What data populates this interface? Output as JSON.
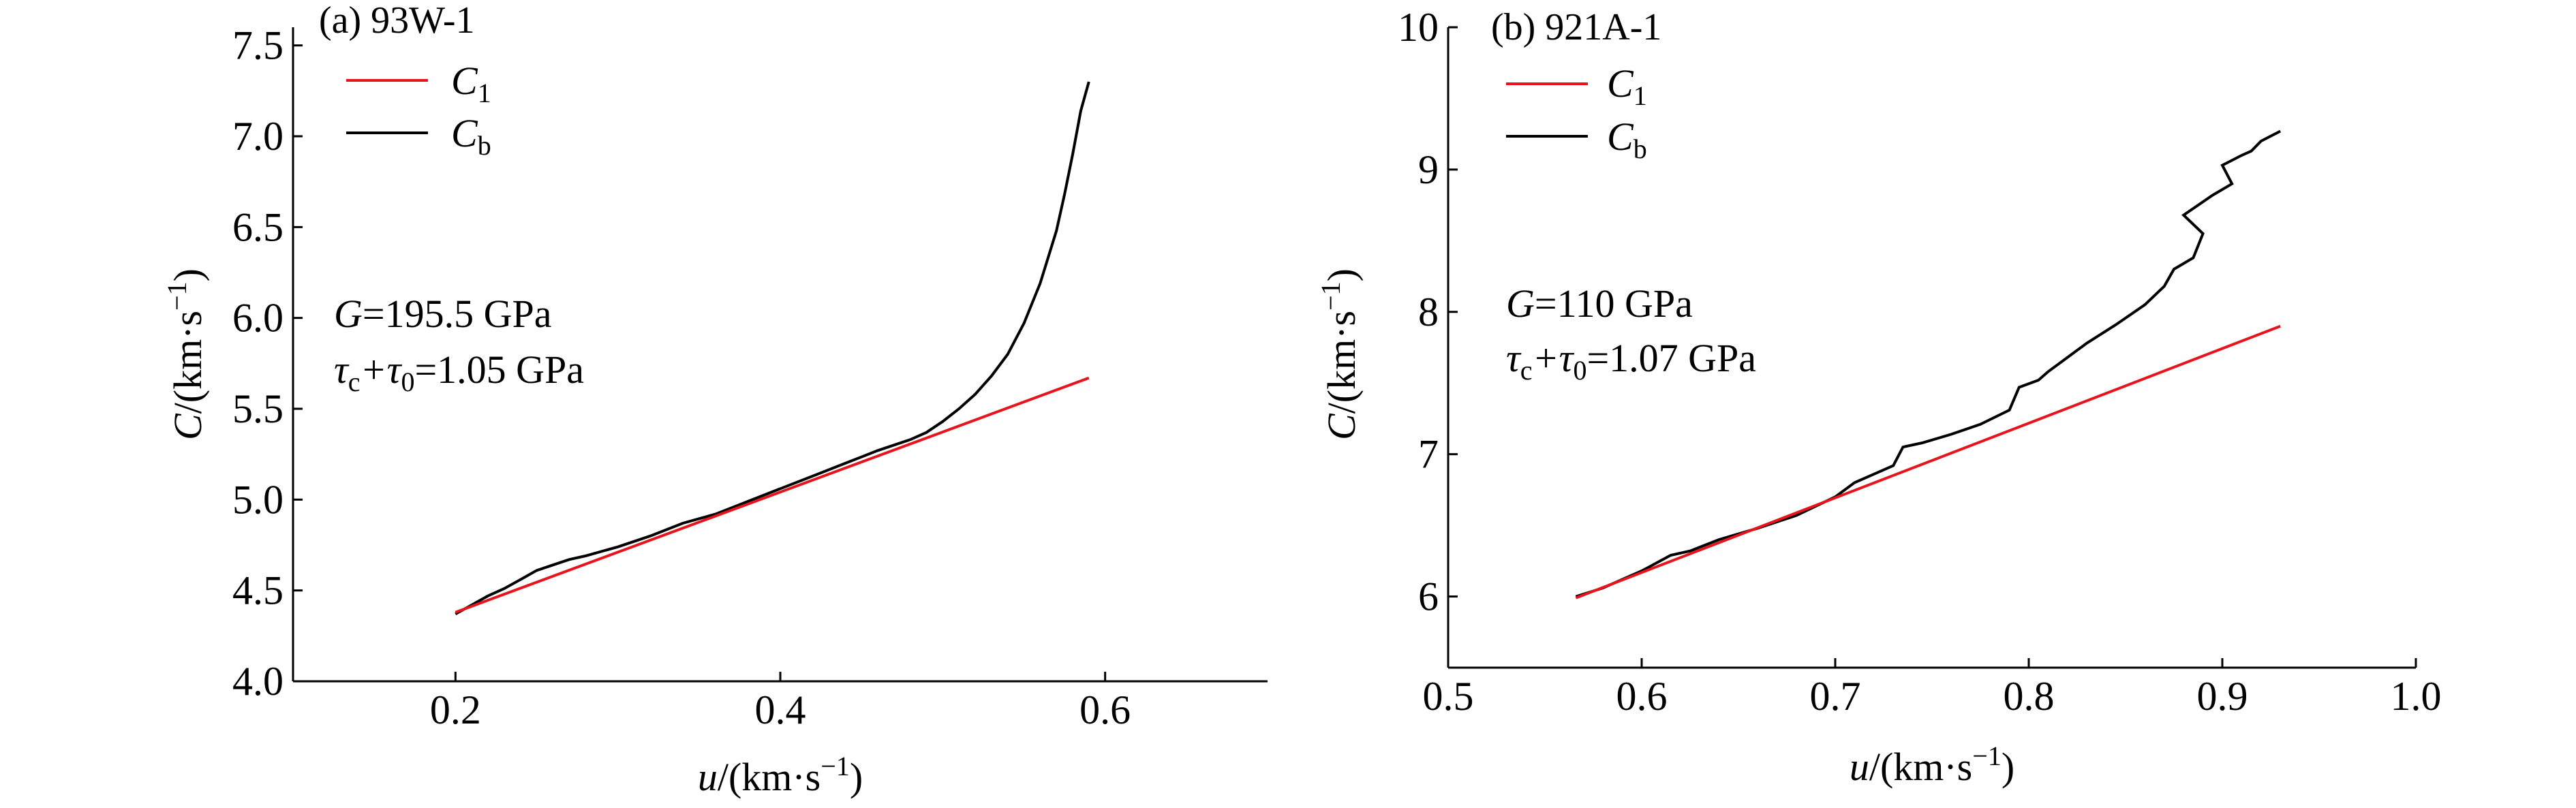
{
  "chart_data": [
    {
      "type": "line",
      "title": "(a) 93W-1",
      "xlabel": "u/(km·s−1)",
      "ylabel": "C/(km·s−1)",
      "xlim": [
        0.1,
        0.7
      ],
      "ylim": [
        4.0,
        7.6
      ],
      "x_ticks": [
        0.2,
        0.4,
        0.6
      ],
      "x_tick_labels": [
        "0.2",
        "0.4",
        "0.6"
      ],
      "y_ticks": [
        4.0,
        4.5,
        5.0,
        5.5,
        6.0,
        6.5,
        7.0,
        7.5
      ],
      "y_tick_labels": [
        "4.0",
        "4.5",
        "5.0",
        "5.5",
        "6.0",
        "6.5",
        "7.0",
        "7.5"
      ],
      "legend": [
        {
          "label": "C",
          "sub": "1",
          "color": "#e8131b"
        },
        {
          "label": "C",
          "sub": "b",
          "color": "#000000"
        }
      ],
      "annotations": {
        "g_label": "G",
        "g_value": "=195.5 GPa",
        "tau_c": "τ",
        "tau_c_sub": "c",
        "tau_plus": "+τ",
        "tau_0_sub": "0",
        "tau_value": "=1.05 GPa"
      },
      "series": [
        {
          "name": "C1",
          "color": "#e8131b",
          "x": [
            0.2,
            0.59
          ],
          "y": [
            4.38,
            5.67
          ]
        },
        {
          "name": "Cb",
          "color": "#000000",
          "x": [
            0.2,
            0.21,
            0.22,
            0.23,
            0.24,
            0.25,
            0.26,
            0.27,
            0.28,
            0.3,
            0.32,
            0.34,
            0.36,
            0.38,
            0.4,
            0.42,
            0.44,
            0.46,
            0.47,
            0.48,
            0.49,
            0.5,
            0.51,
            0.52,
            0.53,
            0.54,
            0.55,
            0.56,
            0.57,
            0.575,
            0.58,
            0.585,
            0.59
          ],
          "y": [
            4.37,
            4.42,
            4.47,
            4.51,
            4.56,
            4.61,
            4.64,
            4.67,
            4.69,
            4.74,
            4.8,
            4.87,
            4.92,
            4.99,
            5.06,
            5.13,
            5.2,
            5.27,
            5.3,
            5.33,
            5.37,
            5.43,
            5.5,
            5.58,
            5.68,
            5.8,
            5.97,
            6.19,
            6.48,
            6.68,
            6.9,
            7.14,
            7.3
          ]
        }
      ]
    },
    {
      "type": "line",
      "title": "(b) 921A-1",
      "xlabel": "u/(km·s−1)",
      "ylabel": "C/(km·s−1)",
      "xlim": [
        0.5,
        1.0
      ],
      "ylim": [
        5.5,
        10.0
      ],
      "x_ticks": [
        0.5,
        0.6,
        0.7,
        0.8,
        0.9,
        1.0
      ],
      "x_tick_labels": [
        "0.5",
        "0.6",
        "0.7",
        "0.8",
        "0.9",
        "1.0"
      ],
      "y_ticks": [
        6,
        7,
        8,
        9,
        10
      ],
      "y_tick_labels": [
        "6",
        "7",
        "8",
        "9",
        "10"
      ],
      "legend": [
        {
          "label": "C",
          "sub": "1",
          "color": "#e8131b"
        },
        {
          "label": "C",
          "sub": "b",
          "color": "#000000"
        }
      ],
      "annotations": {
        "g_label": "G",
        "g_value": "=110 GPa",
        "tau_c": "τ",
        "tau_c_sub": "c",
        "tau_plus": "+τ",
        "tau_0_sub": "0",
        "tau_value": "=1.07 GPa"
      },
      "series": [
        {
          "name": "C1",
          "color": "#e8131b",
          "x": [
            0.566,
            0.93
          ],
          "y": [
            5.99,
            7.9
          ]
        },
        {
          "name": "Cb",
          "color": "#000000",
          "x": [
            0.566,
            0.58,
            0.6,
            0.615,
            0.625,
            0.64,
            0.66,
            0.68,
            0.7,
            0.71,
            0.72,
            0.73,
            0.735,
            0.745,
            0.76,
            0.775,
            0.79,
            0.795,
            0.805,
            0.81,
            0.82,
            0.83,
            0.845,
            0.86,
            0.87,
            0.875,
            0.885,
            0.89,
            0.88,
            0.895,
            0.905,
            0.9,
            0.91,
            0.915,
            0.92,
            0.93
          ],
          "y": [
            6.0,
            6.06,
            6.18,
            6.29,
            6.32,
            6.4,
            6.48,
            6.57,
            6.7,
            6.8,
            6.86,
            6.92,
            7.05,
            7.08,
            7.14,
            7.21,
            7.31,
            7.47,
            7.52,
            7.58,
            7.68,
            7.78,
            7.91,
            8.05,
            8.18,
            8.3,
            8.38,
            8.55,
            8.68,
            8.82,
            8.9,
            9.03,
            9.1,
            9.13,
            9.2,
            9.27
          ]
        }
      ]
    }
  ]
}
